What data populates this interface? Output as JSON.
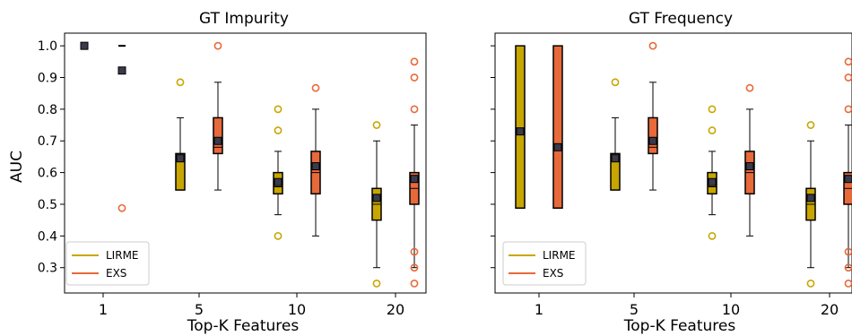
{
  "chart_data": [
    {
      "type": "box",
      "title": "GT Impurity",
      "xlabel": "Top-K Features",
      "ylabel": "AUC",
      "categories": [
        "1",
        "5",
        "10",
        "20"
      ],
      "ylim": [
        0.22,
        1.04
      ],
      "yticks": [
        "0.3",
        "0.4",
        "0.5",
        "0.6",
        "0.7",
        "0.8",
        "0.9",
        "1.0"
      ],
      "legend": {
        "position": "lower-left",
        "entries": [
          "LIRME",
          "EXS"
        ]
      },
      "series": [
        {
          "name": "LIRME",
          "color": "#c8a600",
          "boxes": [
            {
              "category": "1",
              "whislo": 1.0,
              "q1": 1.0,
              "med": 1.0,
              "q3": 1.0,
              "whishi": 1.0,
              "mean": 1.0,
              "fliers": []
            },
            {
              "category": "5",
              "whislo": 0.545,
              "q1": 0.545,
              "med": 0.635,
              "q3": 0.66,
              "whishi": 0.773,
              "mean": 0.645,
              "fliers": [
                0.885
              ]
            },
            {
              "category": "10",
              "whislo": 0.467,
              "q1": 0.533,
              "med": 0.555,
              "q3": 0.6,
              "whishi": 0.667,
              "mean": 0.57,
              "fliers": [
                0.8,
                0.733,
                0.4
              ]
            },
            {
              "category": "20",
              "whislo": 0.3,
              "q1": 0.45,
              "med": 0.5,
              "q3": 0.55,
              "whishi": 0.7,
              "mean": 0.52,
              "fliers": [
                0.75,
                0.25
              ]
            }
          ]
        },
        {
          "name": "EXS",
          "color": "#e8693a",
          "boxes": [
            {
              "category": "1",
              "whislo": 1.0,
              "q1": 1.0,
              "med": 1.0,
              "q3": 1.0,
              "whishi": 1.0,
              "mean": 0.922,
              "fliers": [
                0.488
              ]
            },
            {
              "category": "5",
              "whislo": 0.545,
              "q1": 0.66,
              "med": 0.68,
              "q3": 0.773,
              "whishi": 0.885,
              "mean": 0.7,
              "fliers": [
                1.0
              ]
            },
            {
              "category": "10",
              "whislo": 0.4,
              "q1": 0.533,
              "med": 0.6,
              "q3": 0.667,
              "whishi": 0.8,
              "mean": 0.62,
              "fliers": [
                0.867
              ]
            },
            {
              "category": "20",
              "whislo": 0.3,
              "q1": 0.5,
              "med": 0.55,
              "q3": 0.6,
              "whishi": 0.75,
              "mean": 0.58,
              "fliers": [
                0.95,
                0.9,
                0.8,
                0.35,
                0.3,
                0.25
              ]
            }
          ]
        }
      ]
    },
    {
      "type": "box",
      "title": "GT Frequency",
      "xlabel": "Top-K Features",
      "ylabel": "",
      "categories": [
        "1",
        "5",
        "10",
        "20"
      ],
      "ylim": [
        0.22,
        1.04
      ],
      "yticks": [],
      "legend": {
        "position": "lower-left",
        "entries": [
          "LIRME",
          "EXS"
        ]
      },
      "series": [
        {
          "name": "LIRME",
          "color": "#c8a600",
          "boxes": [
            {
              "category": "1",
              "whislo": 0.488,
              "q1": 0.488,
              "med": 0.73,
              "q3": 1.0,
              "whishi": 1.0,
              "mean": 0.73,
              "fliers": []
            },
            {
              "category": "5",
              "whislo": 0.545,
              "q1": 0.545,
              "med": 0.635,
              "q3": 0.66,
              "whishi": 0.773,
              "mean": 0.645,
              "fliers": [
                0.885
              ]
            },
            {
              "category": "10",
              "whislo": 0.467,
              "q1": 0.533,
              "med": 0.555,
              "q3": 0.6,
              "whishi": 0.667,
              "mean": 0.57,
              "fliers": [
                0.8,
                0.733,
                0.4
              ]
            },
            {
              "category": "20",
              "whislo": 0.3,
              "q1": 0.45,
              "med": 0.5,
              "q3": 0.55,
              "whishi": 0.7,
              "mean": 0.52,
              "fliers": [
                0.75,
                0.25
              ]
            }
          ]
        },
        {
          "name": "EXS",
          "color": "#e8693a",
          "boxes": [
            {
              "category": "1",
              "whislo": 0.488,
              "q1": 0.488,
              "med": 0.68,
              "q3": 1.0,
              "whishi": 1.0,
              "mean": 0.68,
              "fliers": []
            },
            {
              "category": "5",
              "whislo": 0.545,
              "q1": 0.66,
              "med": 0.68,
              "q3": 0.773,
              "whishi": 0.885,
              "mean": 0.7,
              "fliers": [
                1.0
              ]
            },
            {
              "category": "10",
              "whislo": 0.4,
              "q1": 0.533,
              "med": 0.6,
              "q3": 0.667,
              "whishi": 0.8,
              "mean": 0.62,
              "fliers": [
                0.867
              ]
            },
            {
              "category": "20",
              "whislo": 0.3,
              "q1": 0.5,
              "med": 0.55,
              "q3": 0.6,
              "whishi": 0.75,
              "mean": 0.58,
              "fliers": [
                0.95,
                0.9,
                0.8,
                0.35,
                0.3,
                0.25
              ]
            }
          ]
        }
      ]
    }
  ]
}
